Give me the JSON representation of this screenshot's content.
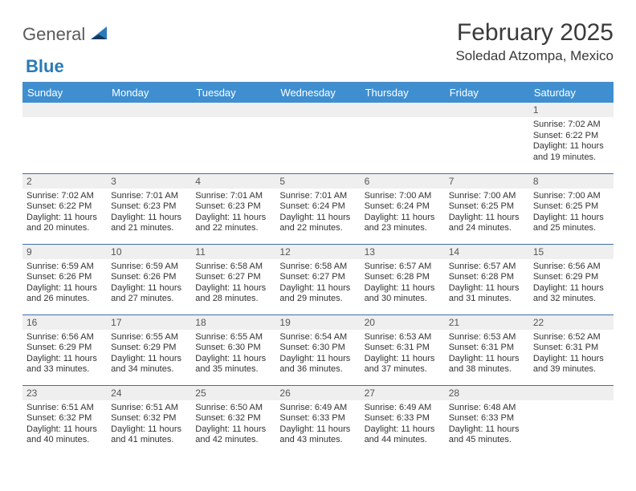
{
  "brand": {
    "word1": "General",
    "word2": "Blue"
  },
  "title": "February 2025",
  "location": "Soledad Atzompa, Mexico",
  "colors": {
    "header_bg": "#3f8fd0",
    "rule": "#4a8cc7",
    "row_border": "#3f6faa",
    "daynum_bg": "#efefef",
    "brand_gray": "#5a5a5a",
    "brand_blue": "#2a7ab9"
  },
  "weekdays": [
    "Sunday",
    "Monday",
    "Tuesday",
    "Wednesday",
    "Thursday",
    "Friday",
    "Saturday"
  ],
  "leading_blanks": 6,
  "days": [
    {
      "n": 1,
      "sunrise": "7:02 AM",
      "sunset": "6:22 PM",
      "daylight": "11 hours and 19 minutes."
    },
    {
      "n": 2,
      "sunrise": "7:02 AM",
      "sunset": "6:22 PM",
      "daylight": "11 hours and 20 minutes."
    },
    {
      "n": 3,
      "sunrise": "7:01 AM",
      "sunset": "6:23 PM",
      "daylight": "11 hours and 21 minutes."
    },
    {
      "n": 4,
      "sunrise": "7:01 AM",
      "sunset": "6:23 PM",
      "daylight": "11 hours and 22 minutes."
    },
    {
      "n": 5,
      "sunrise": "7:01 AM",
      "sunset": "6:24 PM",
      "daylight": "11 hours and 22 minutes."
    },
    {
      "n": 6,
      "sunrise": "7:00 AM",
      "sunset": "6:24 PM",
      "daylight": "11 hours and 23 minutes."
    },
    {
      "n": 7,
      "sunrise": "7:00 AM",
      "sunset": "6:25 PM",
      "daylight": "11 hours and 24 minutes."
    },
    {
      "n": 8,
      "sunrise": "7:00 AM",
      "sunset": "6:25 PM",
      "daylight": "11 hours and 25 minutes."
    },
    {
      "n": 9,
      "sunrise": "6:59 AM",
      "sunset": "6:26 PM",
      "daylight": "11 hours and 26 minutes."
    },
    {
      "n": 10,
      "sunrise": "6:59 AM",
      "sunset": "6:26 PM",
      "daylight": "11 hours and 27 minutes."
    },
    {
      "n": 11,
      "sunrise": "6:58 AM",
      "sunset": "6:27 PM",
      "daylight": "11 hours and 28 minutes."
    },
    {
      "n": 12,
      "sunrise": "6:58 AM",
      "sunset": "6:27 PM",
      "daylight": "11 hours and 29 minutes."
    },
    {
      "n": 13,
      "sunrise": "6:57 AM",
      "sunset": "6:28 PM",
      "daylight": "11 hours and 30 minutes."
    },
    {
      "n": 14,
      "sunrise": "6:57 AM",
      "sunset": "6:28 PM",
      "daylight": "11 hours and 31 minutes."
    },
    {
      "n": 15,
      "sunrise": "6:56 AM",
      "sunset": "6:29 PM",
      "daylight": "11 hours and 32 minutes."
    },
    {
      "n": 16,
      "sunrise": "6:56 AM",
      "sunset": "6:29 PM",
      "daylight": "11 hours and 33 minutes."
    },
    {
      "n": 17,
      "sunrise": "6:55 AM",
      "sunset": "6:29 PM",
      "daylight": "11 hours and 34 minutes."
    },
    {
      "n": 18,
      "sunrise": "6:55 AM",
      "sunset": "6:30 PM",
      "daylight": "11 hours and 35 minutes."
    },
    {
      "n": 19,
      "sunrise": "6:54 AM",
      "sunset": "6:30 PM",
      "daylight": "11 hours and 36 minutes."
    },
    {
      "n": 20,
      "sunrise": "6:53 AM",
      "sunset": "6:31 PM",
      "daylight": "11 hours and 37 minutes."
    },
    {
      "n": 21,
      "sunrise": "6:53 AM",
      "sunset": "6:31 PM",
      "daylight": "11 hours and 38 minutes."
    },
    {
      "n": 22,
      "sunrise": "6:52 AM",
      "sunset": "6:31 PM",
      "daylight": "11 hours and 39 minutes."
    },
    {
      "n": 23,
      "sunrise": "6:51 AM",
      "sunset": "6:32 PM",
      "daylight": "11 hours and 40 minutes."
    },
    {
      "n": 24,
      "sunrise": "6:51 AM",
      "sunset": "6:32 PM",
      "daylight": "11 hours and 41 minutes."
    },
    {
      "n": 25,
      "sunrise": "6:50 AM",
      "sunset": "6:32 PM",
      "daylight": "11 hours and 42 minutes."
    },
    {
      "n": 26,
      "sunrise": "6:49 AM",
      "sunset": "6:33 PM",
      "daylight": "11 hours and 43 minutes."
    },
    {
      "n": 27,
      "sunrise": "6:49 AM",
      "sunset": "6:33 PM",
      "daylight": "11 hours and 44 minutes."
    },
    {
      "n": 28,
      "sunrise": "6:48 AM",
      "sunset": "6:33 PM",
      "daylight": "11 hours and 45 minutes."
    }
  ],
  "labels": {
    "sunrise": "Sunrise:",
    "sunset": "Sunset:",
    "daylight": "Daylight:"
  }
}
